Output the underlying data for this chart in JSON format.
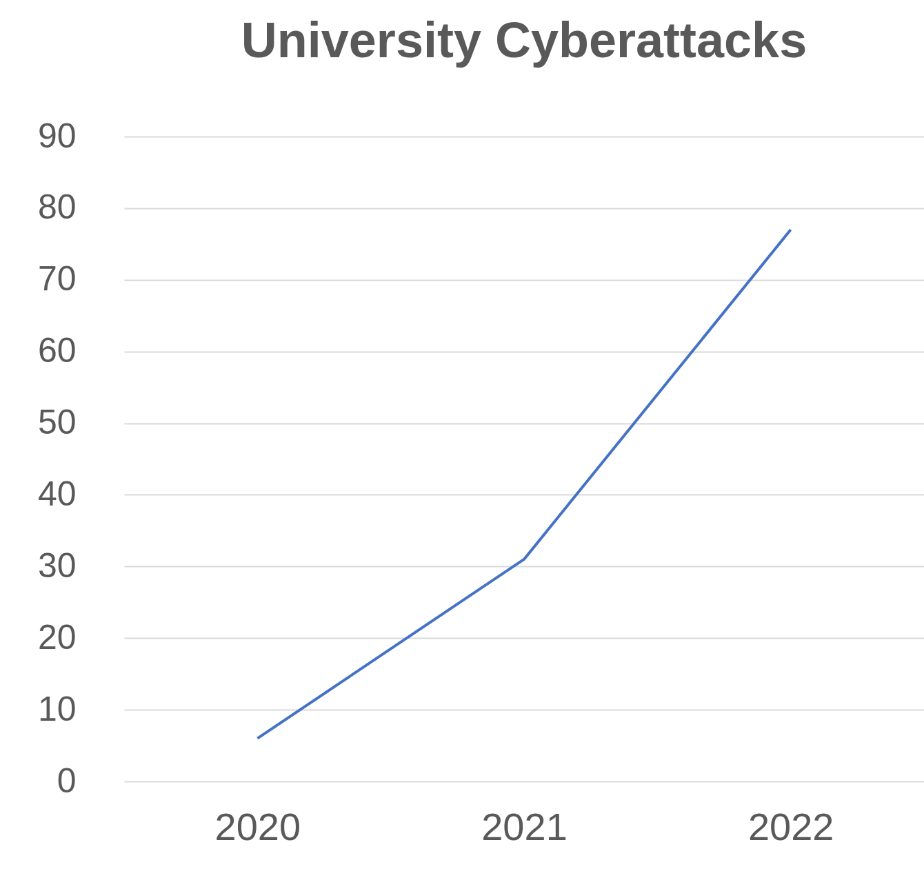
{
  "chart_data": {
    "type": "line",
    "title": "University Cyberattacks",
    "categories": [
      "2020",
      "2021",
      "2022"
    ],
    "series": [
      {
        "color": "#4472c4",
        "values": [
          6,
          31,
          77
        ]
      }
    ],
    "ylim": [
      0,
      90
    ],
    "yticks": [
      0,
      10,
      20,
      30,
      40,
      50,
      60,
      70,
      80,
      90
    ],
    "grid": "y",
    "marker": "none",
    "line_style": "solid"
  }
}
